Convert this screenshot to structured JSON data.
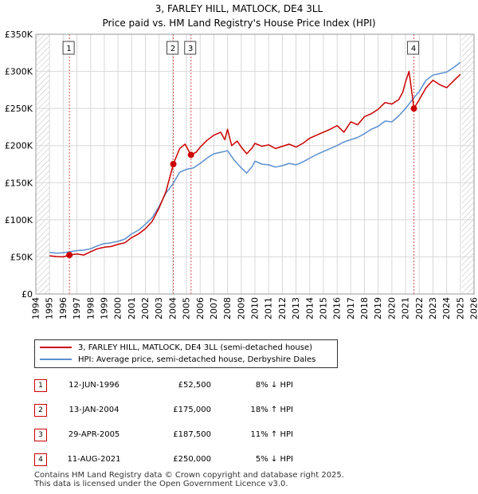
{
  "header": {
    "title": "3, FARLEY HILL, MATLOCK, DE4 3LL",
    "subtitle": "Price paid vs. HM Land Registry's House Price Index (HPI)"
  },
  "colors": {
    "price_paid": "#cc0000",
    "hpi": "#5b8fd0",
    "marker_line": "#cc0000",
    "grid": "#d8d8d8",
    "plot_bg": "#ffffff",
    "hatch": "#bbbbbb"
  },
  "chart_data": {
    "type": "line",
    "title": "Price paid vs. HM Land Registry's House Price Index (HPI)",
    "xlabel": "",
    "ylabel": "",
    "xlim": [
      1994,
      2026
    ],
    "ylim": [
      0,
      350000
    ],
    "x_ticks": [
      "1994",
      "1995",
      "1996",
      "1997",
      "1998",
      "1999",
      "2000",
      "2001",
      "2002",
      "2003",
      "2004",
      "2005",
      "2006",
      "2007",
      "2008",
      "2009",
      "2010",
      "2011",
      "2012",
      "2013",
      "2014",
      "2015",
      "2016",
      "2017",
      "2018",
      "2019",
      "2020",
      "2021",
      "2022",
      "2023",
      "2024",
      "2025",
      "2026"
    ],
    "y_ticks": [
      {
        "value": 0,
        "label": "£0"
      },
      {
        "value": 50000,
        "label": "£50K"
      },
      {
        "value": 100000,
        "label": "£100K"
      },
      {
        "value": 150000,
        "label": "£150K"
      },
      {
        "value": 200000,
        "label": "£200K"
      },
      {
        "value": 250000,
        "label": "£250K"
      },
      {
        "value": 300000,
        "label": "£300K"
      },
      {
        "value": 350000,
        "label": "£350K"
      }
    ],
    "grid": true,
    "hatched_ranges": [
      [
        1994,
        1995
      ],
      [
        2025.1,
        2026
      ]
    ],
    "series": [
      {
        "name": "3, FARLEY HILL, MATLOCK, DE4 3LL (semi-detached house)",
        "color": "#cc0000",
        "points": [
          [
            1995,
            51500
          ],
          [
            1995.5,
            50500
          ],
          [
            1996,
            50000
          ],
          [
            1996.45,
            52500
          ],
          [
            1997,
            54000
          ],
          [
            1997.5,
            52500
          ],
          [
            1998,
            57000
          ],
          [
            1998.5,
            61000
          ],
          [
            1999,
            63000
          ],
          [
            1999.5,
            64000
          ],
          [
            2000,
            67000
          ],
          [
            2000.5,
            69000
          ],
          [
            2001,
            76000
          ],
          [
            2001.5,
            81000
          ],
          [
            2002,
            88000
          ],
          [
            2002.5,
            98000
          ],
          [
            2003,
            116000
          ],
          [
            2003.5,
            138000
          ],
          [
            2004.04,
            175000
          ],
          [
            2004.5,
            196000
          ],
          [
            2004.9,
            202000
          ],
          [
            2005.33,
            187500
          ],
          [
            2005.7,
            191000
          ],
          [
            2006,
            198000
          ],
          [
            2006.5,
            207000
          ],
          [
            2007,
            214000
          ],
          [
            2007.5,
            218000
          ],
          [
            2007.8,
            208000
          ],
          [
            2008,
            222000
          ],
          [
            2008.3,
            200000
          ],
          [
            2008.7,
            206000
          ],
          [
            2009,
            198000
          ],
          [
            2009.4,
            189000
          ],
          [
            2009.8,
            197000
          ],
          [
            2010,
            203000
          ],
          [
            2010.5,
            199000
          ],
          [
            2011,
            201000
          ],
          [
            2011.5,
            196000
          ],
          [
            2012,
            199000
          ],
          [
            2012.5,
            202000
          ],
          [
            2013,
            198000
          ],
          [
            2013.5,
            203000
          ],
          [
            2014,
            210000
          ],
          [
            2014.5,
            214000
          ],
          [
            2015,
            218000
          ],
          [
            2015.5,
            222000
          ],
          [
            2016,
            227000
          ],
          [
            2016.5,
            218000
          ],
          [
            2017,
            232000
          ],
          [
            2017.5,
            228000
          ],
          [
            2018,
            239000
          ],
          [
            2018.5,
            243000
          ],
          [
            2019,
            249000
          ],
          [
            2019.5,
            258000
          ],
          [
            2020,
            256000
          ],
          [
            2020.5,
            262000
          ],
          [
            2020.8,
            272000
          ],
          [
            2021,
            286000
          ],
          [
            2021.25,
            300000
          ],
          [
            2021.5,
            266000
          ],
          [
            2021.61,
            250000
          ],
          [
            2022,
            262000
          ],
          [
            2022.5,
            278000
          ],
          [
            2023,
            288000
          ],
          [
            2023.5,
            282000
          ],
          [
            2024,
            278000
          ],
          [
            2024.5,
            287000
          ],
          [
            2025,
            296000
          ]
        ]
      },
      {
        "name": "HPI: Average price, semi-detached house, Derbyshire Dales",
        "color": "#5b8fd0",
        "points": [
          [
            1995,
            56000
          ],
          [
            1995.5,
            55000
          ],
          [
            1996,
            55500
          ],
          [
            1996.5,
            57000
          ],
          [
            1997,
            58500
          ],
          [
            1997.5,
            59000
          ],
          [
            1998,
            61000
          ],
          [
            1998.5,
            65000
          ],
          [
            1999,
            68000
          ],
          [
            1999.5,
            69000
          ],
          [
            2000,
            71000
          ],
          [
            2000.5,
            74000
          ],
          [
            2001,
            81000
          ],
          [
            2001.5,
            86000
          ],
          [
            2002,
            94000
          ],
          [
            2002.5,
            103000
          ],
          [
            2003,
            118000
          ],
          [
            2003.5,
            136000
          ],
          [
            2004,
            148000
          ],
          [
            2004.5,
            164000
          ],
          [
            2005,
            168000
          ],
          [
            2005.5,
            170000
          ],
          [
            2006,
            176000
          ],
          [
            2006.5,
            183000
          ],
          [
            2007,
            189000
          ],
          [
            2007.5,
            191000
          ],
          [
            2008,
            193000
          ],
          [
            2008.5,
            180000
          ],
          [
            2009,
            170000
          ],
          [
            2009.4,
            163000
          ],
          [
            2009.8,
            172000
          ],
          [
            2010,
            179000
          ],
          [
            2010.5,
            175000
          ],
          [
            2011,
            174000
          ],
          [
            2011.5,
            171000
          ],
          [
            2012,
            173000
          ],
          [
            2012.5,
            176000
          ],
          [
            2013,
            174000
          ],
          [
            2013.5,
            178000
          ],
          [
            2014,
            183000
          ],
          [
            2014.5,
            188000
          ],
          [
            2015,
            192000
          ],
          [
            2015.5,
            196000
          ],
          [
            2016,
            200000
          ],
          [
            2016.5,
            205000
          ],
          [
            2017,
            208000
          ],
          [
            2017.5,
            211000
          ],
          [
            2018,
            216000
          ],
          [
            2018.5,
            222000
          ],
          [
            2019,
            226000
          ],
          [
            2019.5,
            233000
          ],
          [
            2020,
            232000
          ],
          [
            2020.5,
            240000
          ],
          [
            2021,
            250000
          ],
          [
            2021.5,
            262000
          ],
          [
            2022,
            273000
          ],
          [
            2022.5,
            288000
          ],
          [
            2023,
            295000
          ],
          [
            2023.5,
            297000
          ],
          [
            2024,
            299000
          ],
          [
            2024.5,
            305000
          ],
          [
            2025,
            312000
          ]
        ]
      }
    ],
    "sale_markers": [
      {
        "label": "1",
        "x": 1996.45,
        "y": 52500
      },
      {
        "label": "2",
        "x": 2004.04,
        "y": 175000
      },
      {
        "label": "3",
        "x": 2005.33,
        "y": 187500
      },
      {
        "label": "4",
        "x": 2021.61,
        "y": 250000
      }
    ]
  },
  "legend": {
    "items": [
      {
        "label": "3, FARLEY HILL, MATLOCK, DE4 3LL (semi-detached house)"
      },
      {
        "label": "HPI: Average price, semi-detached house, Derbyshire Dales"
      }
    ]
  },
  "sales": [
    {
      "num": "1",
      "date": "12-JUN-1996",
      "price": "£52,500",
      "delta": "8% ↓ HPI"
    },
    {
      "num": "2",
      "date": "13-JAN-2004",
      "price": "£175,000",
      "delta": "18% ↑ HPI"
    },
    {
      "num": "3",
      "date": "29-APR-2005",
      "price": "£187,500",
      "delta": "11% ↑ HPI"
    },
    {
      "num": "4",
      "date": "11-AUG-2021",
      "price": "£250,000",
      "delta": "5% ↓ HPI"
    }
  ],
  "footer": {
    "line1": "Contains HM Land Registry data © Crown copyright and database right 2025.",
    "line2": "This data is licensed under the Open Government Licence v3.0."
  }
}
